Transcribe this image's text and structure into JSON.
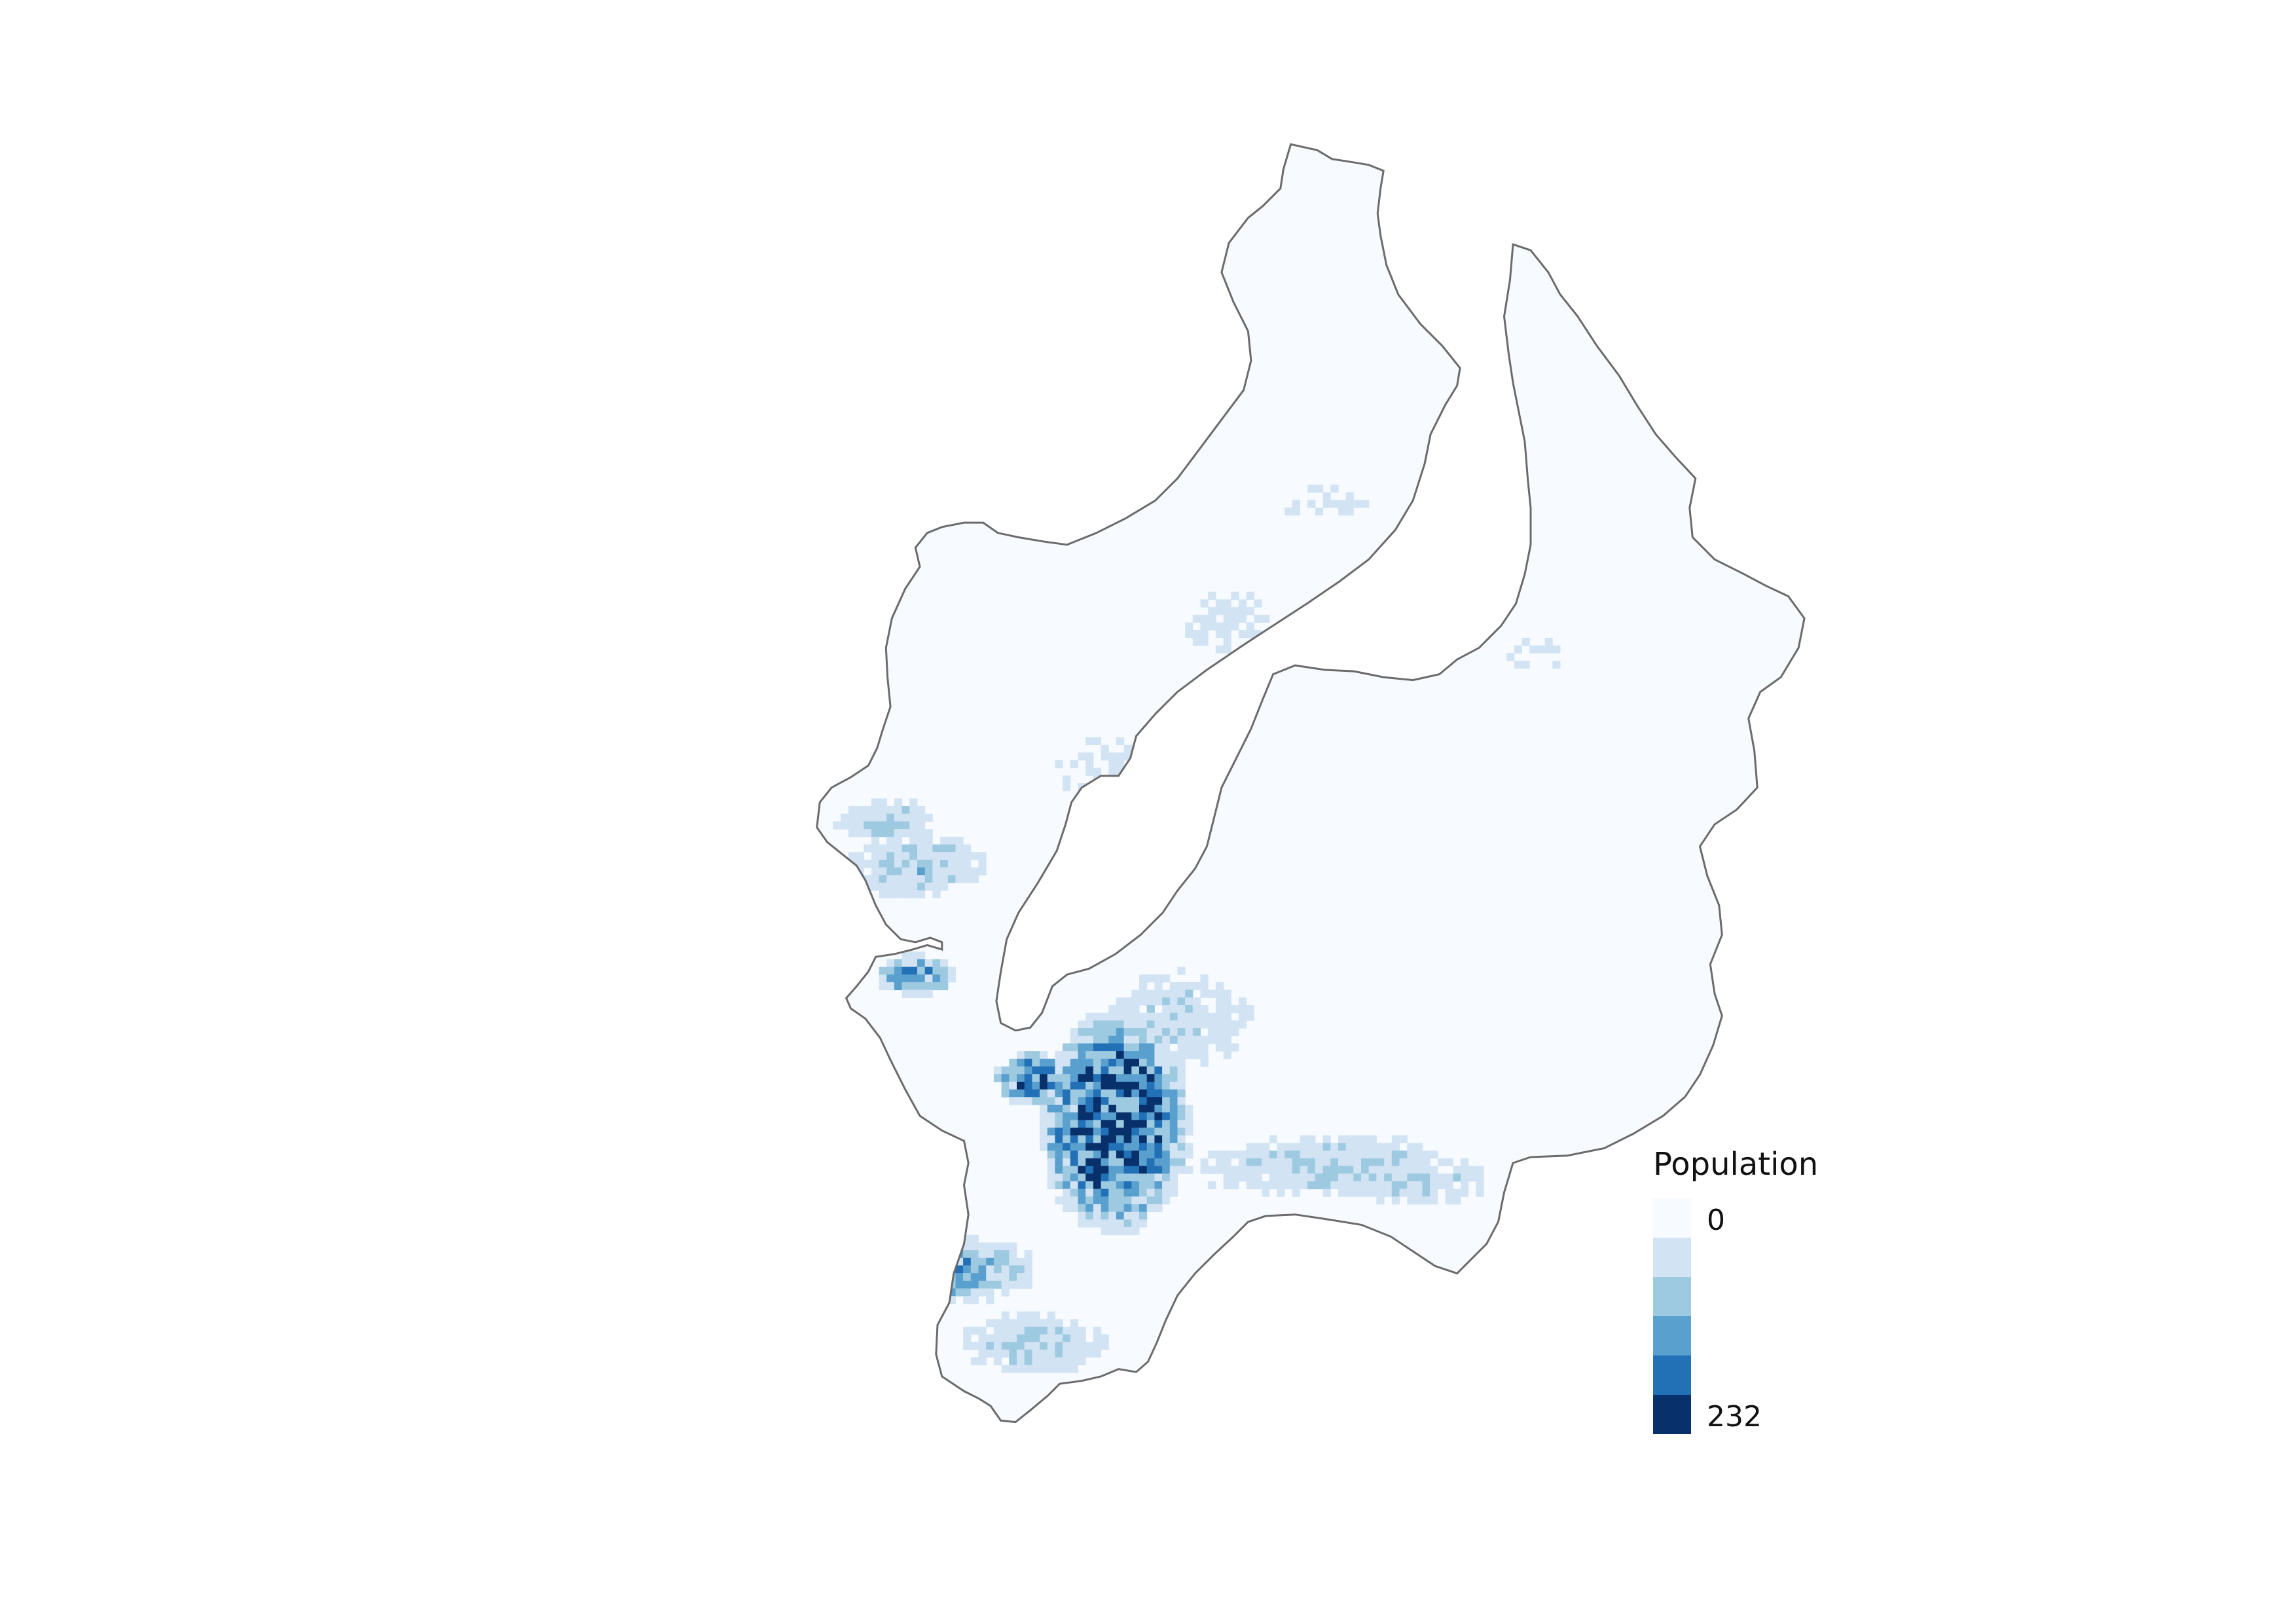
{
  "legend": {
    "title": "Population",
    "min_label": "0",
    "max_label": "232",
    "classes": [
      {
        "color": "#f7fbff"
      },
      {
        "color": "#d2e3f3"
      },
      {
        "color": "#9ecae1"
      },
      {
        "color": "#5aa0cf"
      },
      {
        "color": "#2270b5"
      },
      {
        "color": "#08306b"
      }
    ]
  },
  "map": {
    "boundary_color": "#6b6b6b",
    "base_fill": "#f7fbff"
  }
}
